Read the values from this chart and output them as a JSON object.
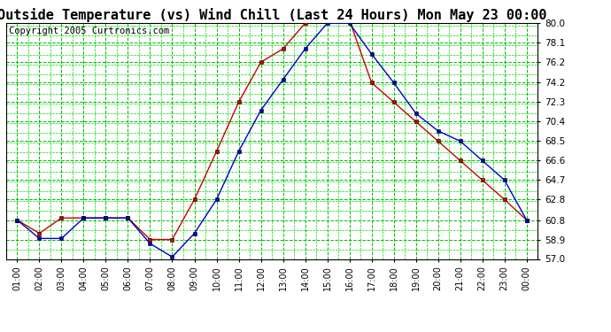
{
  "title": "Outside Temperature (vs) Wind Chill (Last 24 Hours) Mon May 23 00:00",
  "copyright": "Copyright 2005 Curtronics.com",
  "x_labels": [
    "01:00",
    "02:00",
    "03:00",
    "04:00",
    "05:00",
    "06:00",
    "07:00",
    "08:00",
    "09:00",
    "10:00",
    "11:00",
    "12:00",
    "13:00",
    "14:00",
    "15:00",
    "16:00",
    "17:00",
    "18:00",
    "19:00",
    "20:00",
    "21:00",
    "22:00",
    "23:00",
    "00:00"
  ],
  "temp_blue": [
    60.8,
    59.0,
    59.0,
    61.0,
    61.0,
    61.0,
    58.5,
    57.2,
    59.5,
    62.8,
    67.5,
    71.5,
    74.5,
    77.5,
    80.0,
    80.0,
    77.0,
    74.2,
    71.2,
    69.5,
    68.5,
    66.6,
    64.7,
    60.8
  ],
  "temp_red": [
    60.8,
    59.5,
    61.0,
    61.0,
    61.0,
    61.0,
    58.9,
    58.9,
    62.8,
    67.5,
    72.3,
    76.2,
    77.5,
    80.0,
    80.3,
    80.3,
    74.2,
    72.3,
    70.4,
    68.5,
    66.6,
    64.7,
    62.8,
    60.8
  ],
  "ylim": [
    57.0,
    80.0
  ],
  "ytick_vals": [
    57.0,
    58.9,
    60.8,
    62.8,
    64.7,
    66.6,
    68.5,
    70.4,
    72.3,
    74.2,
    76.2,
    78.1,
    80.0
  ],
  "ytick_labels": [
    "57.0",
    "58.9",
    "60.8",
    "62.8",
    "64.7",
    "66.6",
    "68.5",
    "70.4",
    "72.3",
    "74.2",
    "76.2",
    "78.1",
    "80.0"
  ],
  "bg_color": "#ffffff",
  "major_grid_color": "#00bb00",
  "minor_grid_color": "#00dd00",
  "blue_color": "#0000cc",
  "red_color": "#cc0000",
  "title_fontsize": 11,
  "copyright_fontsize": 7.5,
  "tick_fontsize": 7,
  "ytick_fontsize": 7.5
}
